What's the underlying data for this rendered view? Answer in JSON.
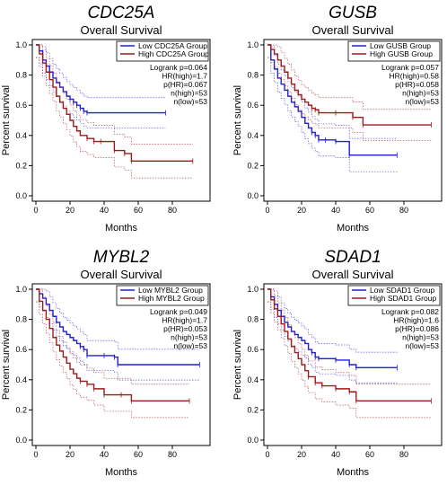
{
  "chart_data": [
    {
      "type": "line",
      "gene": "CDC25A",
      "title": "Overall Survival",
      "xlabel": "Months",
      "ylabel": "Percent survival",
      "xlim": [
        0,
        100
      ],
      "ylim": [
        0,
        1.0
      ],
      "xticks": [
        0,
        20,
        40,
        60,
        80
      ],
      "yticks": [
        0.0,
        0.2,
        0.4,
        0.6,
        0.8,
        1.0
      ],
      "legend_position": "top-right",
      "series": [
        {
          "name": "Low CDC25A Group",
          "color": "#1f1fd6",
          "x": [
            0,
            2,
            4,
            6,
            8,
            10,
            12,
            14,
            16,
            18,
            20,
            22,
            24,
            26,
            28,
            30,
            76
          ],
          "y": [
            1.0,
            0.96,
            0.9,
            0.86,
            0.82,
            0.78,
            0.75,
            0.72,
            0.69,
            0.66,
            0.64,
            0.62,
            0.6,
            0.58,
            0.56,
            0.55,
            0.55
          ]
        },
        {
          "name": "High CDC25A Group",
          "color": "#a01a1a",
          "x": [
            0,
            2,
            4,
            6,
            8,
            10,
            12,
            14,
            16,
            18,
            20,
            22,
            24,
            26,
            30,
            34,
            38,
            46,
            52,
            56,
            92
          ],
          "y": [
            1.0,
            0.94,
            0.88,
            0.82,
            0.77,
            0.72,
            0.66,
            0.62,
            0.58,
            0.54,
            0.5,
            0.46,
            0.43,
            0.4,
            0.38,
            0.36,
            0.36,
            0.3,
            0.28,
            0.23,
            0.23
          ]
        }
      ],
      "stats": [
        "Logrank p=0.064",
        "HR(high)=1.7",
        "p(HR)=0.067",
        "n(high)=53",
        "n(low)=53"
      ]
    },
    {
      "type": "line",
      "gene": "GUSB",
      "title": "Overall Survival",
      "xlabel": "Months",
      "ylabel": "Percent survival",
      "xlim": [
        0,
        100
      ],
      "ylim": [
        0,
        1.0
      ],
      "xticks": [
        0,
        20,
        40,
        60,
        80
      ],
      "yticks": [
        0.0,
        0.2,
        0.4,
        0.6,
        0.8,
        1.0
      ],
      "legend_position": "top-right",
      "series": [
        {
          "name": "Low GUSB Group",
          "color": "#1f1fd6",
          "x": [
            0,
            2,
            4,
            6,
            8,
            10,
            12,
            14,
            16,
            18,
            20,
            22,
            24,
            26,
            28,
            30,
            34,
            40,
            48,
            76
          ],
          "y": [
            1.0,
            0.9,
            0.84,
            0.78,
            0.74,
            0.7,
            0.66,
            0.62,
            0.59,
            0.56,
            0.52,
            0.48,
            0.45,
            0.42,
            0.4,
            0.37,
            0.37,
            0.36,
            0.27,
            0.27
          ]
        },
        {
          "name": "High GUSB Group",
          "color": "#a01a1a",
          "x": [
            0,
            2,
            4,
            6,
            8,
            10,
            12,
            14,
            16,
            18,
            20,
            22,
            24,
            26,
            28,
            30,
            40,
            50,
            56,
            96
          ],
          "y": [
            1.0,
            0.97,
            0.94,
            0.9,
            0.86,
            0.82,
            0.78,
            0.74,
            0.7,
            0.67,
            0.64,
            0.62,
            0.6,
            0.58,
            0.57,
            0.55,
            0.55,
            0.52,
            0.47,
            0.47
          ]
        }
      ],
      "stats": [
        "Logrank p=0.057",
        "HR(high)=0.58",
        "p(HR)=0.058",
        "n(high)=53",
        "n(low)=53"
      ]
    },
    {
      "type": "line",
      "gene": "MYBL2",
      "title": "Overall Survival",
      "xlabel": "Months",
      "ylabel": "Percent survival",
      "xlim": [
        0,
        100
      ],
      "ylim": [
        0,
        1.0
      ],
      "xticks": [
        0,
        20,
        40,
        60,
        80
      ],
      "yticks": [
        0.0,
        0.2,
        0.4,
        0.6,
        0.8,
        1.0
      ],
      "legend_position": "top-right",
      "series": [
        {
          "name": "Low MYBL2 Group",
          "color": "#1f1fd6",
          "x": [
            0,
            2,
            4,
            6,
            8,
            10,
            12,
            14,
            16,
            18,
            20,
            22,
            24,
            26,
            28,
            30,
            40,
            46,
            48,
            96
          ],
          "y": [
            1.0,
            0.97,
            0.94,
            0.9,
            0.86,
            0.82,
            0.78,
            0.75,
            0.72,
            0.7,
            0.68,
            0.66,
            0.64,
            0.62,
            0.6,
            0.56,
            0.56,
            0.55,
            0.5,
            0.5
          ]
        },
        {
          "name": "High MYBL2 Group",
          "color": "#a01a1a",
          "x": [
            0,
            2,
            4,
            6,
            8,
            10,
            12,
            14,
            16,
            18,
            20,
            22,
            24,
            26,
            30,
            34,
            40,
            50,
            56,
            90
          ],
          "y": [
            1.0,
            0.92,
            0.86,
            0.8,
            0.74,
            0.68,
            0.63,
            0.59,
            0.55,
            0.51,
            0.47,
            0.44,
            0.41,
            0.39,
            0.37,
            0.34,
            0.3,
            0.3,
            0.26,
            0.26
          ]
        }
      ],
      "stats": [
        "Logrank p=0.049",
        "HR(high)=1.7",
        "p(HR)=0.053",
        "n(high)=53",
        "n(low)=53"
      ]
    },
    {
      "type": "line",
      "gene": "SDAD1",
      "title": "Overall Survival",
      "xlabel": "Months",
      "ylabel": "Percent survival",
      "xlim": [
        0,
        100
      ],
      "ylim": [
        0,
        1.0
      ],
      "xticks": [
        0,
        20,
        40,
        60,
        80
      ],
      "yticks": [
        0.0,
        0.2,
        0.4,
        0.6,
        0.8,
        1.0
      ],
      "legend_position": "top-right",
      "series": [
        {
          "name": "Low SDAD1 Group",
          "color": "#1f1fd6",
          "x": [
            0,
            2,
            4,
            6,
            8,
            10,
            12,
            14,
            16,
            18,
            20,
            22,
            24,
            26,
            28,
            30,
            40,
            48,
            52,
            76
          ],
          "y": [
            1.0,
            0.95,
            0.9,
            0.86,
            0.82,
            0.78,
            0.75,
            0.72,
            0.7,
            0.68,
            0.66,
            0.64,
            0.6,
            0.58,
            0.55,
            0.54,
            0.53,
            0.5,
            0.48,
            0.48
          ]
        },
        {
          "name": "High SDAD1 Group",
          "color": "#a01a1a",
          "x": [
            0,
            2,
            4,
            6,
            8,
            10,
            12,
            14,
            16,
            18,
            20,
            22,
            24,
            28,
            32,
            40,
            48,
            52,
            96
          ],
          "y": [
            1.0,
            0.93,
            0.87,
            0.82,
            0.77,
            0.72,
            0.67,
            0.62,
            0.58,
            0.54,
            0.5,
            0.46,
            0.42,
            0.38,
            0.36,
            0.34,
            0.32,
            0.26,
            0.26
          ]
        }
      ],
      "stats": [
        "Logrank p=0.082",
        "HR(high)=1.6",
        "p(HR)=0.086",
        "n(high)=53",
        "n(low)=53"
      ]
    }
  ]
}
